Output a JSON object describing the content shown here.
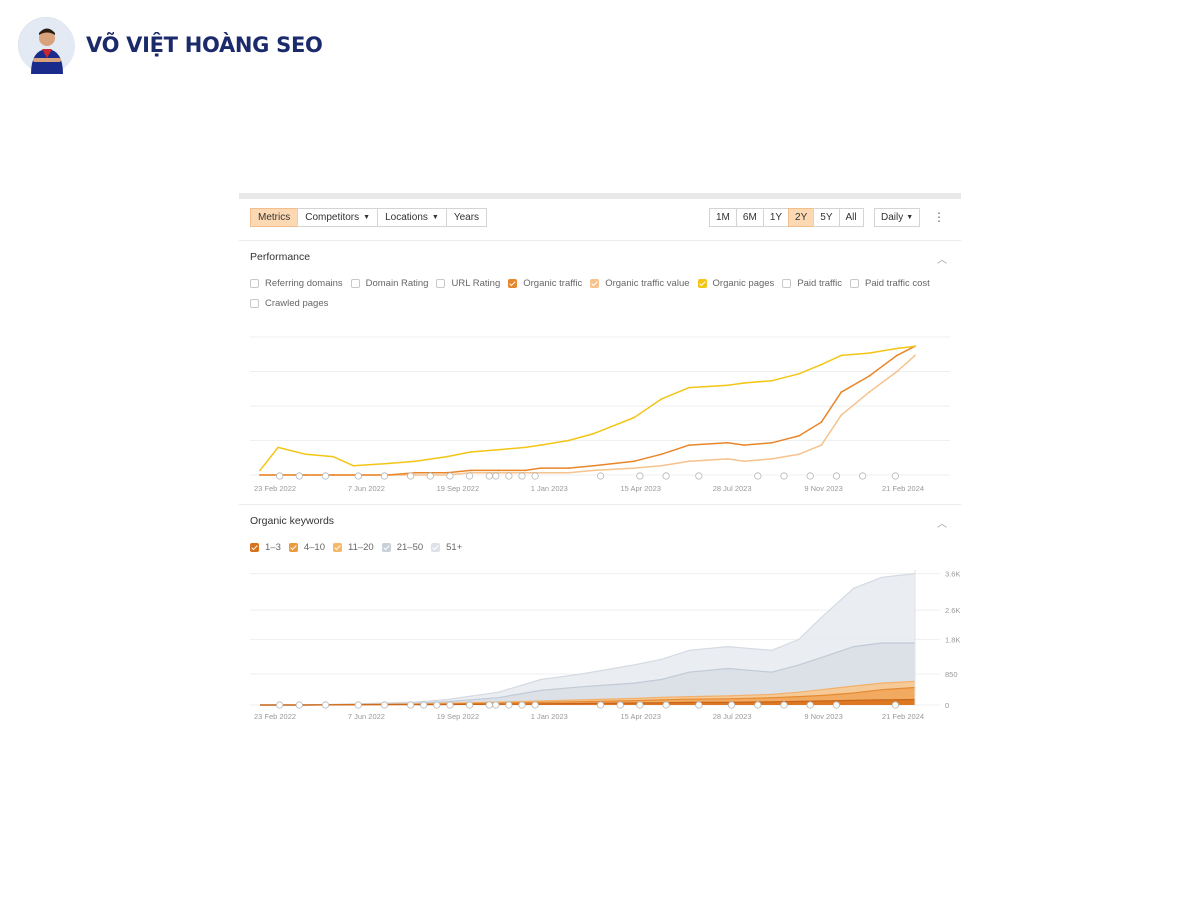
{
  "brand": {
    "name": "VÕ VIỆT HOÀNG SEO"
  },
  "toolbar": {
    "tabs": [
      {
        "label": "Metrics",
        "active": true,
        "dropdown": false
      },
      {
        "label": "Competitors",
        "active": false,
        "dropdown": true
      },
      {
        "label": "Locations",
        "active": false,
        "dropdown": true
      },
      {
        "label": "Years",
        "active": false,
        "dropdown": false
      }
    ],
    "ranges": [
      {
        "label": "1M",
        "active": false
      },
      {
        "label": "6M",
        "active": false
      },
      {
        "label": "1Y",
        "active": false
      },
      {
        "label": "2Y",
        "active": true
      },
      {
        "label": "5Y",
        "active": false
      },
      {
        "label": "All",
        "active": false
      }
    ],
    "interval": "Daily",
    "more_icon": "kebab-menu-icon"
  },
  "performance": {
    "title": "Performance",
    "metrics": [
      {
        "label": "Referring domains",
        "checked": false,
        "color": "#c8c8c8"
      },
      {
        "label": "Domain Rating",
        "checked": false,
        "color": "#c8c8c8"
      },
      {
        "label": "URL Rating",
        "checked": false,
        "color": "#c8c8c8"
      },
      {
        "label": "Organic traffic",
        "checked": true,
        "color": "#e8862a"
      },
      {
        "label": "Organic traffic value",
        "checked": true,
        "color": "#f6c28d"
      },
      {
        "label": "Organic pages",
        "checked": true,
        "color": "#f3c515"
      },
      {
        "label": "Paid traffic",
        "checked": false,
        "color": "#c8c8c8"
      },
      {
        "label": "Paid traffic cost",
        "checked": false,
        "color": "#c8c8c8"
      },
      {
        "label": "Crawled pages",
        "checked": false,
        "color": "#c8c8c8"
      }
    ],
    "x_ticks": [
      "23 Feb 2022",
      "7 Jun 2022",
      "19 Sep 2022",
      "1 Jan 2023",
      "15 Apr 2023",
      "28 Jul 2023",
      "9 Nov 2023",
      "21 Feb 2024"
    ]
  },
  "keywords": {
    "title": "Organic keywords",
    "positions": [
      {
        "label": "1–3",
        "checked": true,
        "color": "#d9721c"
      },
      {
        "label": "4–10",
        "checked": true,
        "color": "#ec9a3f"
      },
      {
        "label": "11–20",
        "checked": true,
        "color": "#f6b766"
      },
      {
        "label": "21–50",
        "checked": true,
        "color": "#c9d0da"
      },
      {
        "label": "51+",
        "checked": true,
        "color": "#dde2e9"
      }
    ],
    "x_ticks": [
      "23 Feb 2022",
      "7 Jun 2022",
      "19 Sep 2022",
      "1 Jan 2023",
      "15 Apr 2023",
      "28 Jul 2023",
      "9 Nov 2023",
      "21 Feb 2024"
    ],
    "y_ticks": [
      "3.6K",
      "2.6K",
      "1.8K",
      "850",
      "0"
    ]
  },
  "chart_data": [
    {
      "type": "line",
      "title": "Performance",
      "x": [
        "2022-02-23",
        "2022-03-15",
        "2022-04-15",
        "2022-05-15",
        "2022-06-07",
        "2022-07-15",
        "2022-08-15",
        "2022-09-19",
        "2022-10-15",
        "2022-11-15",
        "2022-12-15",
        "2023-01-01",
        "2023-02-01",
        "2023-03-01",
        "2023-04-15",
        "2023-05-15",
        "2023-06-15",
        "2023-07-28",
        "2023-08-15",
        "2023-09-15",
        "2023-10-15",
        "2023-11-09",
        "2023-12-01",
        "2024-01-01",
        "2024-02-01",
        "2024-02-21"
      ],
      "series": [
        {
          "name": "Organic pages",
          "color": "#f3c515",
          "values": [
            2,
            12,
            9,
            8,
            4,
            5,
            6,
            8,
            10,
            11,
            12,
            13,
            15,
            18,
            25,
            33,
            38,
            39,
            40,
            41,
            44,
            48,
            52,
            53,
            55,
            56
          ]
        },
        {
          "name": "Organic traffic",
          "color": "#e8862a",
          "values": [
            0,
            0,
            0,
            0,
            0,
            0,
            1,
            1,
            2,
            2,
            2,
            3,
            3,
            4,
            6,
            9,
            13,
            14,
            13,
            14,
            17,
            23,
            36,
            43,
            52,
            56
          ]
        },
        {
          "name": "Organic traffic value",
          "color": "#f6c28d",
          "values": [
            0,
            0,
            0,
            0,
            0,
            0,
            0,
            0,
            1,
            1,
            1,
            1,
            1,
            2,
            3,
            4,
            6,
            7,
            6,
            7,
            9,
            13,
            26,
            36,
            45,
            52
          ]
        }
      ],
      "ylim": [
        0,
        60
      ]
    },
    {
      "type": "area",
      "title": "Organic keywords",
      "x": [
        "2022-02-23",
        "2022-04-15",
        "2022-06-07",
        "2022-08-15",
        "2022-09-19",
        "2022-11-15",
        "2023-01-01",
        "2023-02-15",
        "2023-04-15",
        "2023-05-15",
        "2023-06-15",
        "2023-07-28",
        "2023-09-15",
        "2023-10-15",
        "2023-11-09",
        "2023-12-15",
        "2024-01-15",
        "2024-02-21"
      ],
      "series": [
        {
          "name": "1–3",
          "values": [
            0,
            0,
            5,
            10,
            15,
            25,
            30,
            40,
            55,
            60,
            70,
            75,
            85,
            100,
            110,
            130,
            140,
            150
          ]
        },
        {
          "name": "4–10",
          "values": [
            0,
            0,
            10,
            20,
            30,
            50,
            70,
            90,
            120,
            140,
            160,
            170,
            200,
            230,
            260,
            330,
            420,
            480
          ]
        },
        {
          "name": "11–20",
          "values": [
            0,
            0,
            15,
            30,
            50,
            80,
            110,
            140,
            180,
            210,
            230,
            250,
            290,
            350,
            420,
            520,
            600,
            650
          ]
        },
        {
          "name": "21–50",
          "values": [
            0,
            0,
            20,
            50,
            90,
            200,
            400,
            500,
            600,
            700,
            900,
            1000,
            900,
            1100,
            1300,
            1600,
            1700,
            1700
          ]
        },
        {
          "name": "51+",
          "values": [
            0,
            0,
            30,
            80,
            150,
            350,
            700,
            850,
            1100,
            1250,
            1500,
            1600,
            1500,
            1800,
            2400,
            3200,
            3500,
            3600
          ]
        }
      ],
      "ylim": [
        0,
        3700
      ],
      "y_ticks": [
        0,
        850,
        1800,
        2600,
        3600
      ]
    }
  ]
}
